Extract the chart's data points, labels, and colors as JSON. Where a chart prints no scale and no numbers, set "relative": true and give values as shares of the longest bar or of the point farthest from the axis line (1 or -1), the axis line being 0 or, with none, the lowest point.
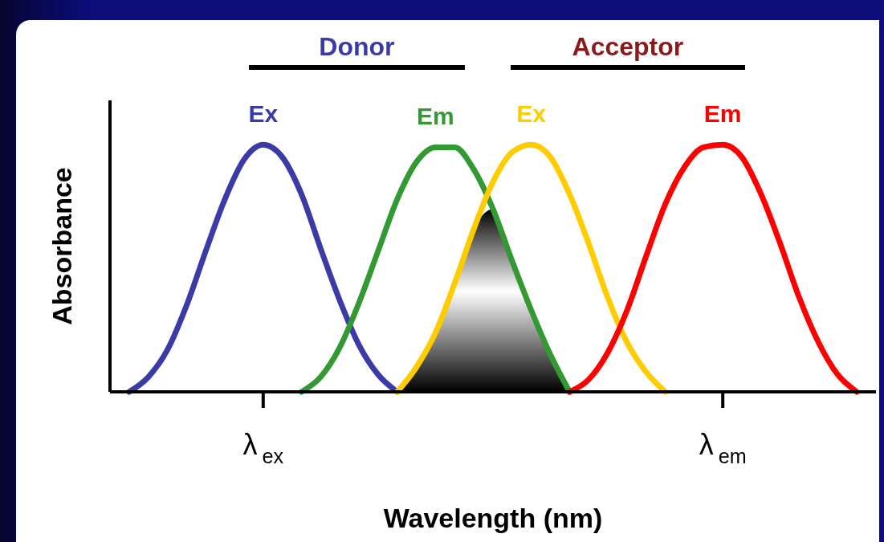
{
  "chart_data": {
    "type": "line",
    "relative": true,
    "xlabel": "Wavelength (nm)",
    "ylabel": "Absorbance",
    "annotations": [
      "Donor",
      "Acceptor"
    ],
    "categories": [
      null,
      null,
      null,
      null,
      null,
      null,
      null,
      null,
      "λ$_{ex}$",
      null,
      null,
      null,
      null,
      null,
      null,
      null,
      null,
      null,
      null,
      null,
      null,
      null,
      null,
      null,
      null,
      null,
      null,
      null,
      null,
      null,
      null,
      null,
      "λ$_{em}$",
      null,
      null,
      null,
      null,
      null,
      null,
      null,
      null
    ],
    "series": [
      {
        "name": "Ex",
        "color": "#3b3ba8",
        "values": [
          null,
          0,
          0.06,
          0.17,
          0.35,
          0.57,
          0.78,
          0.94,
          1,
          0.95,
          0.8,
          0.58,
          0.37,
          0.19,
          0.07,
          0,
          null,
          null,
          null,
          null,
          null,
          null,
          null,
          null,
          null,
          null,
          null,
          null,
          null,
          null,
          null,
          null,
          null,
          null,
          null,
          null,
          null,
          null,
          null,
          null,
          null
        ]
      },
      {
        "name": "Em",
        "color": "#339933",
        "values": [
          null,
          null,
          null,
          null,
          null,
          null,
          null,
          null,
          null,
          null,
          0,
          0.06,
          0.18,
          0.36,
          0.57,
          0.78,
          0.93,
          0.99,
          0.99,
          0.9,
          0.74,
          0.53,
          0.33,
          0.15,
          0,
          null,
          null,
          null,
          null,
          null,
          null,
          null,
          null,
          null,
          null,
          null,
          null,
          null,
          null,
          null,
          null
        ]
      },
      {
        "name": "Ex",
        "color": "#ffcc00",
        "values": [
          null,
          null,
          null,
          null,
          null,
          null,
          null,
          null,
          null,
          null,
          null,
          null,
          null,
          null,
          null,
          0,
          0.1,
          0.24,
          0.44,
          0.66,
          0.85,
          0.97,
          1,
          0.95,
          0.8,
          0.6,
          0.38,
          0.2,
          0.08,
          0,
          null,
          null,
          null,
          null,
          null,
          null,
          null,
          null,
          null,
          null,
          null
        ]
      },
      {
        "name": "Em",
        "color": "#ff0000",
        "values": [
          null,
          null,
          null,
          null,
          null,
          null,
          null,
          null,
          null,
          null,
          null,
          null,
          null,
          null,
          null,
          null,
          null,
          null,
          null,
          null,
          null,
          null,
          null,
          null,
          0,
          0.05,
          0.16,
          0.33,
          0.55,
          0.76,
          0.91,
          0.99,
          1,
          0.95,
          0.8,
          0.6,
          0.38,
          0.2,
          0.07,
          0,
          null
        ]
      },
      {
        "type": "area",
        "color": "#000000",
        "values": [
          null,
          null,
          null,
          null,
          null,
          null,
          null,
          null,
          null,
          null,
          null,
          null,
          null,
          null,
          null,
          0,
          0.1,
          0.24,
          0.44,
          0.66,
          0.74,
          0.53,
          0.33,
          0.15,
          0,
          null,
          null,
          null,
          null,
          null,
          null,
          null,
          null,
          null,
          null,
          null,
          null,
          null,
          null,
          null,
          null
        ]
      }
    ]
  }
}
